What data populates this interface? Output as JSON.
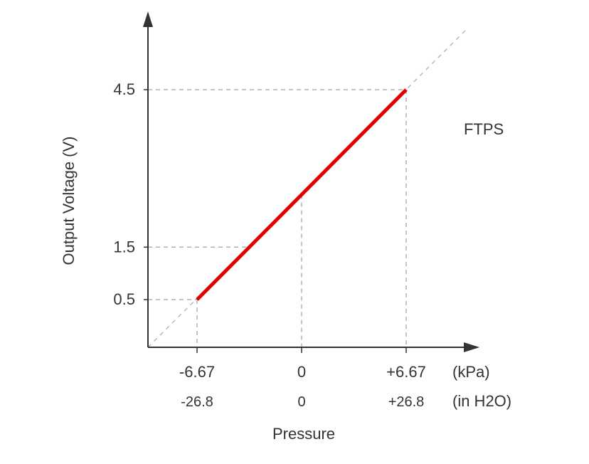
{
  "chart_data": {
    "type": "line",
    "title": "",
    "annotation": "FTPS",
    "xlabel": "Pressure",
    "ylabel": "Output Voltage (V)",
    "x_ticks": [
      {
        "kpa": "-6.67",
        "inh2o": "-26.8",
        "value": -6.67
      },
      {
        "kpa": "0",
        "inh2o": "0",
        "value": 0
      },
      {
        "kpa": "+6.67",
        "inh2o": "+26.8",
        "value": 6.67
      }
    ],
    "x_units": {
      "kpa": "(kPa)",
      "inh2o": "(in H2O)"
    },
    "y_ticks": [
      {
        "label": "0.5",
        "value": 0.5
      },
      {
        "label": "1.5",
        "value": 1.5
      },
      {
        "label": "4.5",
        "value": 4.5
      }
    ],
    "series": [
      {
        "name": "FTPS",
        "x": [
          -6.67,
          6.67
        ],
        "y": [
          0.5,
          4.5
        ],
        "color": "#e00000"
      }
    ],
    "colors": {
      "axis": "#333333",
      "guide": "#b0b0b0",
      "series": "#e00000"
    }
  }
}
